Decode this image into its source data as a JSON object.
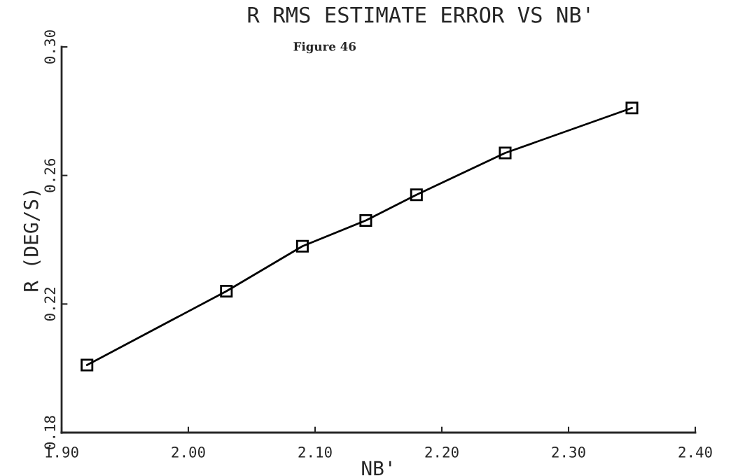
{
  "chart_data": {
    "type": "line",
    "title": "R RMS ESTIMATE ERROR VS NB'",
    "xlabel": "NB'",
    "ylabel": "R (DEG/S)",
    "annotations": [
      "Figure 46"
    ],
    "x": [
      1.92,
      2.03,
      2.09,
      2.14,
      2.18,
      2.25,
      2.35
    ],
    "series": [
      {
        "color": "#000000",
        "values": [
          0.201,
          0.224,
          0.238,
          0.246,
          0.254,
          0.267,
          0.281
        ]
      }
    ],
    "xlim": [
      1.9,
      2.4
    ],
    "xticks": [
      {
        "value": 1.9,
        "label": "1.90"
      },
      {
        "value": 2.0,
        "label": "2.00"
      },
      {
        "value": 2.1,
        "label": "2.10"
      },
      {
        "value": 2.2,
        "label": "2.20"
      },
      {
        "value": 2.3,
        "label": "2.30"
      },
      {
        "value": 2.4,
        "label": "2.40"
      }
    ],
    "ylim": [
      0.18,
      0.3
    ],
    "yticks": [
      0.18,
      0.22,
      0.26,
      {
        "value": 0.3,
        "label": "0.30"
      }
    ],
    "marker": "square",
    "line_style": "solid",
    "grid": false,
    "legend": false
  }
}
